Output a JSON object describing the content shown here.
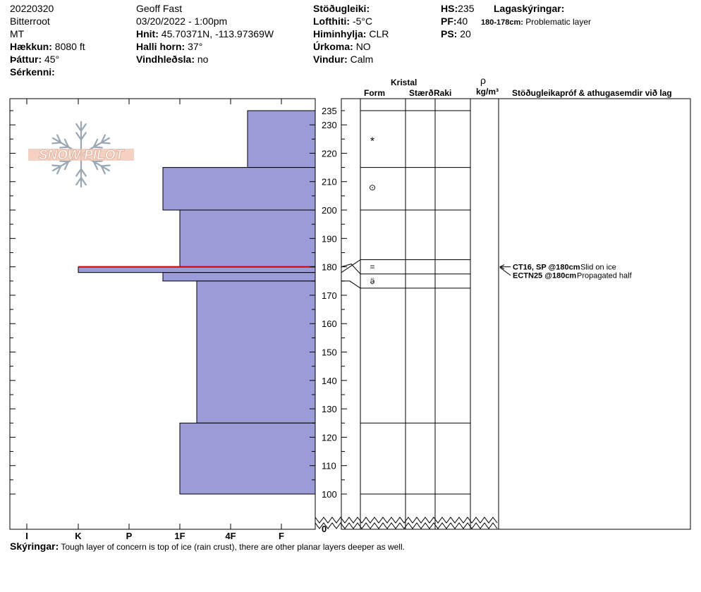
{
  "header": {
    "date": "20220320",
    "range": "Bitterroot",
    "state": "MT",
    "elevation_label": "Hækkun:",
    "elevation_value": "8080 ft",
    "aspect_label": "Þáttur:",
    "aspect_value": "45°",
    "features_label": "Sérkenni:",
    "observer": "Geoff Fast",
    "datetime": "03/20/2022 - 1:00pm",
    "coords_label": "Hnit:",
    "coords_value": "45.70371N, -113.97369W",
    "slope_label": "Halli horn:",
    "slope_value": "37°",
    "wind_loading_label": "Vindhleðsla:",
    "wind_loading_value": "no",
    "stability_label": "Stöðugleiki:",
    "air_temp_label": "Lofthiti:",
    "air_temp_value": "-5°C",
    "sky_label": "Himinhylja:",
    "sky_value": "CLR",
    "precip_label": "Úrkoma:",
    "precip_value": "NO",
    "wind_label": "Vindur:",
    "wind_value": "Calm",
    "hs_label": "HS:",
    "hs_value": "235",
    "pf_label": "PF:",
    "pf_value": "40",
    "ps_label": "PS:",
    "ps_value": "20",
    "layer_notes_label": "Lagaskýringar:",
    "layer_note_depth": "180-178cm:",
    "layer_note_text": "Problematic layer"
  },
  "columns": {
    "crystal": "Kristal",
    "form": "Form",
    "size": "Stærð",
    "moisture": "Raki",
    "density_symbol": "ρ",
    "density_unit": "kg/m³",
    "tests": "Stöðugleikapróf & athugasemdir við lag"
  },
  "logo_text": "SNOW PILOT",
  "notes_label": "Skýringar:",
  "notes_text": "Tough layer of concern is top of ice (rain crust), there are other planar layers deeper as well.",
  "colors": {
    "layer_fill": "#9b9bd7",
    "layer_stroke": "#000000",
    "critical_line": "#cc0000",
    "logo_fill": "#f2c9b8",
    "logo_stroke": "#9aa7b3"
  },
  "chart_data": {
    "type": "snow_profile",
    "y_axis": {
      "unit": "cm",
      "range": [
        100,
        235
      ],
      "break_at_bottom": true,
      "bottom_label": "0",
      "tick_labels": [
        "235",
        "230",
        "220",
        "210",
        "200",
        "190",
        "180",
        "170",
        "160",
        "150",
        "140",
        "130",
        "120",
        "110",
        "100"
      ],
      "tick_values": [
        235,
        230,
        220,
        210,
        200,
        190,
        180,
        170,
        160,
        150,
        140,
        130,
        120,
        110,
        100
      ]
    },
    "hardness_scale": [
      "I",
      "K",
      "P",
      "1F",
      "4F",
      "F"
    ],
    "hardness_layers": [
      {
        "top": 235,
        "bottom": 215,
        "hardness": "4F-"
      },
      {
        "top": 215,
        "bottom": 200,
        "hardness": "1F+"
      },
      {
        "top": 200,
        "bottom": 180,
        "hardness": "1F"
      },
      {
        "top": 180,
        "bottom": 178,
        "hardness": "K"
      },
      {
        "top": 178,
        "bottom": 175,
        "hardness": "1F+"
      },
      {
        "top": 175,
        "bottom": 125,
        "hardness": "1F-"
      },
      {
        "top": 125,
        "bottom": 100,
        "hardness": "1F"
      }
    ],
    "critical_layer": {
      "depth": 180
    },
    "grain_forms": [
      {
        "depth": 224,
        "symbol": "*"
      },
      {
        "depth": 208,
        "symbol": "⊙"
      },
      {
        "depth": 180,
        "symbol": "="
      },
      {
        "depth": 175,
        "symbol": "ӛ"
      }
    ],
    "layer_boundaries": [
      235,
      215,
      200,
      182.5,
      177.5,
      172.5,
      125,
      100
    ],
    "tests": [
      {
        "depth": 180,
        "result": "CT16, SP @180cm",
        "comment": "Slid on ice"
      },
      {
        "depth": 176,
        "result": "ECTN25 @180cm",
        "comment": "Propagated half"
      }
    ]
  }
}
